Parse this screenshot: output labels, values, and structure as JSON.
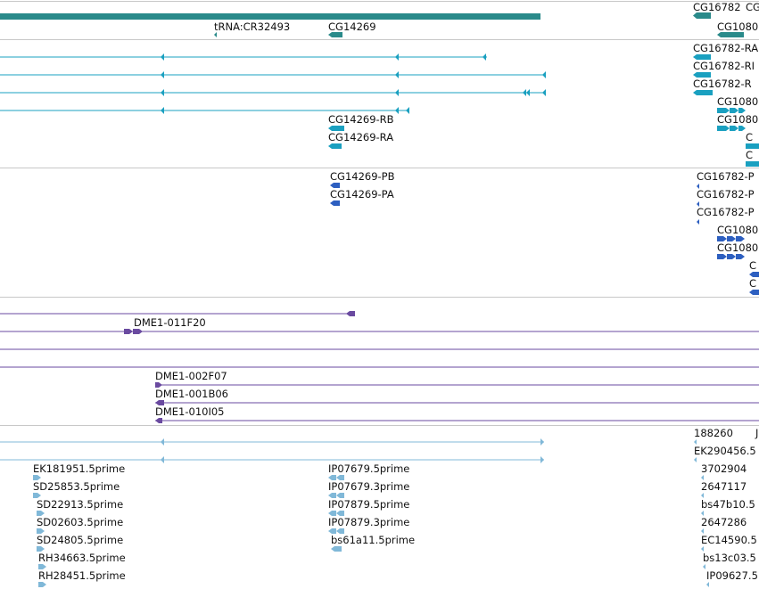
{
  "colors": {
    "gene": "#2a8a8a",
    "mrna": "#1aa0c0",
    "protein": "#2d5fc0",
    "clone": "#6a4aa0",
    "est": "#80b8d8",
    "separator": "#c8c8c8"
  },
  "tracks": [
    {
      "id": "genes",
      "color": "gene",
      "labels": [
        "tRNA:CR32493",
        "CG14269",
        "CG16782",
        "CG",
        "CG1080"
      ]
    },
    {
      "id": "mrna",
      "color": "mrna",
      "labels": [
        "CG16782-RA",
        "CG16782-RI",
        "CG16782-R",
        "CG1080",
        "CG14269-RB",
        "CG1080",
        "CG14269-RA",
        "C",
        "C"
      ]
    },
    {
      "id": "proteins",
      "color": "protein",
      "labels": [
        "CG14269-PB",
        "CG16782-P",
        "CG14269-PA",
        "CG16782-P",
        "CG16782-P",
        "CG1080",
        "CG1080",
        "C",
        "C"
      ]
    },
    {
      "id": "clones",
      "color": "clone",
      "labels": [
        "DME1-011F20",
        "DME1-002F07",
        "DME1-001B06",
        "DME1-010I05"
      ]
    },
    {
      "id": "ests",
      "color": "est",
      "labels": [
        "188260",
        "J",
        "EK290456.5",
        "EK181951.5prime",
        "IP07679.5prime",
        "3702904",
        "SD25853.5prime",
        "IP07679.3prime",
        "2647117",
        "SD22913.5prime",
        "IP07879.5prime",
        "bs47b10.5",
        "SD02603.5prime",
        "IP07879.3prime",
        "2647286",
        "SD24805.5prime",
        "bs61a11.5prime",
        "EC14590.5",
        "RH34663.5prime",
        "bs13c03.5",
        "RH28451.5prime",
        "IP09627.5"
      ]
    }
  ]
}
